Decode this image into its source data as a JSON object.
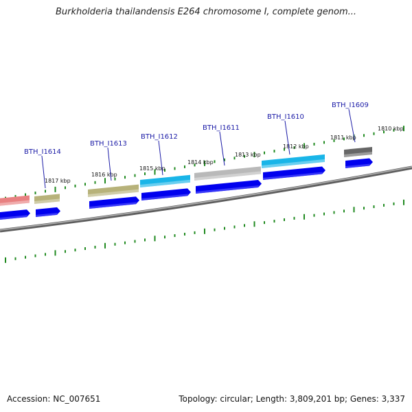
{
  "title": "Burkholderia thailandensis E264 chromosome I, complete genom...",
  "footer": {
    "accession": "Accession: NC_007651",
    "summary": "Topology: circular; Length: 3,809,201 bp; Genes: 3,337"
  },
  "colors": {
    "cds": "#0000ee",
    "backbone": "#8a8a8a",
    "tick": "#1f8a1f",
    "label": "#1a1aa6"
  },
  "tick_labels": [
    "1817 kbp",
    "1816 kbp",
    "1815 kbp",
    "1814 kbp",
    "1813 kbp",
    "1812 kbp",
    "1811 kbp",
    "1810 kbp"
  ],
  "genes": [
    {
      "label": "",
      "color": "#e88080"
    },
    {
      "label": "BTH_I1614",
      "color": "#b7b27a"
    },
    {
      "label": "BTH_I1613",
      "color": "#b7b27a"
    },
    {
      "label": "BTH_I1612",
      "color": "#19b5e8"
    },
    {
      "label": "BTH_I1611",
      "color": "#b9b9b9"
    },
    {
      "label": "BTH_I1610",
      "color": "#19b5e8"
    },
    {
      "label": "BTH_I1609",
      "color": "#666666"
    }
  ]
}
